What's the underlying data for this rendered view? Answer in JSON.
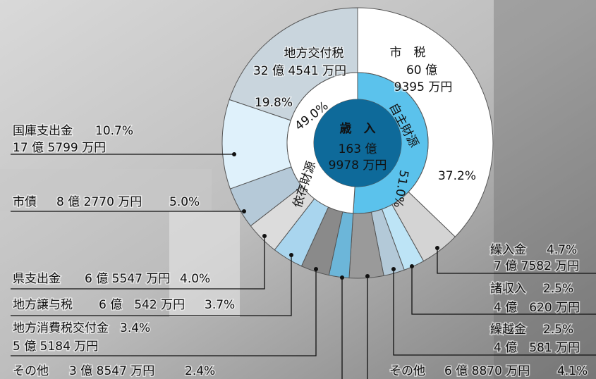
{
  "chart_data": {
    "type": "donut",
    "categories": [
      "市　税",
      "繰入金",
      "諸収入",
      "繰越金",
      "その他",
      "その他",
      "地方消費税交付金",
      "地方譲与税",
      "県支出金",
      "市債",
      "国庫支出金",
      "地方交付税"
    ],
    "values": [
      37.2,
      4.7,
      2.5,
      2.5,
      4.1,
      2.4,
      3.4,
      3.7,
      4.0,
      5.0,
      10.7,
      19.8
    ],
    "value_labels": [
      "37.2%",
      "4.7%",
      "2.5%",
      "2.5%",
      "4.1%",
      "2.4%",
      "3.4%",
      "3.7%",
      "4.0%",
      "5.0%",
      "10.7%",
      "19.8%"
    ],
    "amounts": [
      [
        "60 億",
        "9395 万円"
      ],
      [
        "7 億 7582 万円"
      ],
      [
        "4 億　620 万円"
      ],
      [
        "4 億　581 万円"
      ],
      [
        "6 億 8870 万円"
      ],
      [
        "3 億 8547 万円"
      ],
      [
        "5 億 5184 万円"
      ],
      [
        "6 億　542 万円"
      ],
      [
        "6 億 5547 万円"
      ],
      [
        "8 億 2770 万円"
      ],
      [
        "17 億 5799 万円"
      ],
      [
        "32 億 4541 万円"
      ]
    ],
    "colors": [
      "#ffffff",
      "#d4d4d4",
      "#bde4f6",
      "#b3c9d8",
      "#9a9a9a",
      "#6cb6d9",
      "#8a8a8a",
      "#a9d5ee",
      "#dcdcdc",
      "#b5c9d8",
      "#dff1fb",
      "#c9d5dd"
    ],
    "groups": [
      {
        "name": "自主財源",
        "value": 51.0,
        "value_label": "51.0%",
        "color": "#5bc2ec",
        "text_color": "#0d5f8a"
      },
      {
        "name": "依存財源",
        "value": 49.0,
        "value_label": "49.0%",
        "color": "#ffffff",
        "text_color": "#333333"
      }
    ],
    "center": {
      "title": "歳　入",
      "lines": [
        "163 億",
        "9978 万円"
      ],
      "color": "#0e6a9a"
    }
  }
}
